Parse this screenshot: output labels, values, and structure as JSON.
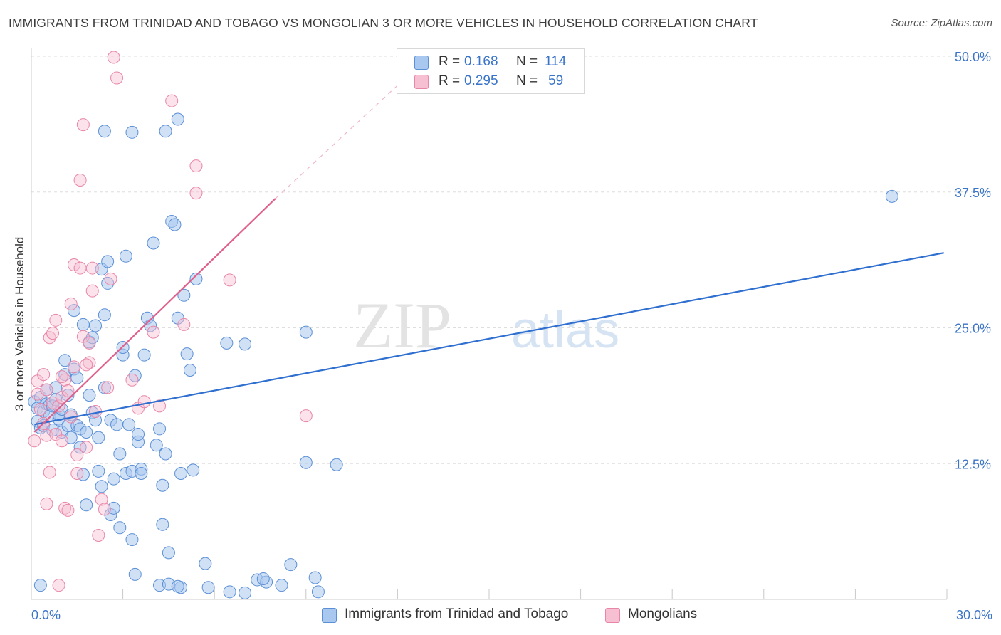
{
  "title": "IMMIGRANTS FROM TRINIDAD AND TOBAGO VS MONGOLIAN 3 OR MORE VEHICLES IN HOUSEHOLD CORRELATION CHART",
  "source": "Source: ZipAtlas.com",
  "watermark": {
    "zip": "ZIP",
    "atlas": "atlas"
  },
  "legend": {
    "r_label": "R =",
    "n_label": "N =",
    "entries": [
      {
        "r": "0.168",
        "n": "114"
      },
      {
        "r": "0.295",
        "n": "59"
      }
    ]
  },
  "bottom_legend": [
    "Immigrants from Trinidad and Tobago",
    "Mongolians"
  ],
  "colors": {
    "blue_fill": "#a9c8ef",
    "blue_stroke": "#5b8fd6",
    "blue_line": "#2f6fd0",
    "pink_fill": "#f6bfd2",
    "pink_stroke": "#e886a8",
    "pink_line": "#e0608c",
    "tick_label": "#3a74c8",
    "grid": "#dedede"
  },
  "chart_data": {
    "type": "scatter",
    "title": "IMMIGRANTS FROM TRINIDAD AND TOBAGO VS MONGOLIAN 3 OR MORE VEHICLES IN HOUSEHOLD CORRELATION CHART",
    "xlabel": "",
    "ylabel": "3 or more Vehicles in Household",
    "xlim": [
      0,
      30
    ],
    "ylim": [
      0,
      50
    ],
    "x_tick_labels": [
      "0.0%",
      "30.0%"
    ],
    "y_ticks": [
      12.5,
      25.0,
      37.5,
      50.0
    ],
    "y_tick_labels": [
      "12.5%",
      "25.0%",
      "37.5%",
      "50.0%"
    ],
    "grid": true,
    "series": [
      {
        "name": "Immigrants from Trinidad and Tobago",
        "r": 0.168,
        "n": 114,
        "trend": {
          "x": [
            0.1,
            29.9
          ],
          "y": [
            16.1,
            31.9
          ]
        },
        "points": [
          [
            0.1,
            18.2
          ],
          [
            0.2,
            17.6
          ],
          [
            0.2,
            16.4
          ],
          [
            0.3,
            15.8
          ],
          [
            0.3,
            18.6
          ],
          [
            0.4,
            17.3
          ],
          [
            0.4,
            16.0
          ],
          [
            0.5,
            18.0
          ],
          [
            0.5,
            19.3
          ],
          [
            0.6,
            17.9
          ],
          [
            0.6,
            16.9
          ],
          [
            0.7,
            15.6
          ],
          [
            0.7,
            17.8
          ],
          [
            0.8,
            19.5
          ],
          [
            0.8,
            18.4
          ],
          [
            0.9,
            16.6
          ],
          [
            0.9,
            17.0
          ],
          [
            1.0,
            17.5
          ],
          [
            1.0,
            15.4
          ],
          [
            1.1,
            22.0
          ],
          [
            1.1,
            20.7
          ],
          [
            1.2,
            18.8
          ],
          [
            1.2,
            16.0
          ],
          [
            1.3,
            14.9
          ],
          [
            1.3,
            17.0
          ],
          [
            1.4,
            26.6
          ],
          [
            1.4,
            21.2
          ],
          [
            1.5,
            20.4
          ],
          [
            1.5,
            16.0
          ],
          [
            1.6,
            15.7
          ],
          [
            1.6,
            14.0
          ],
          [
            1.7,
            25.3
          ],
          [
            1.7,
            11.5
          ],
          [
            1.8,
            15.4
          ],
          [
            1.8,
            8.7
          ],
          [
            1.9,
            23.7
          ],
          [
            1.9,
            18.8
          ],
          [
            2.0,
            24.1
          ],
          [
            2.0,
            17.2
          ],
          [
            2.1,
            25.2
          ],
          [
            2.1,
            16.5
          ],
          [
            2.2,
            11.8
          ],
          [
            2.2,
            14.9
          ],
          [
            2.3,
            10.4
          ],
          [
            2.3,
            30.4
          ],
          [
            2.4,
            19.5
          ],
          [
            2.4,
            26.2
          ],
          [
            2.5,
            29.1
          ],
          [
            2.5,
            31.1
          ],
          [
            2.6,
            16.5
          ],
          [
            2.6,
            7.8
          ],
          [
            2.7,
            11.1
          ],
          [
            2.7,
            8.4
          ],
          [
            2.8,
            16.1
          ],
          [
            2.9,
            13.4
          ],
          [
            2.9,
            6.6
          ],
          [
            3.0,
            22.5
          ],
          [
            3.0,
            23.2
          ],
          [
            3.1,
            31.6
          ],
          [
            3.1,
            11.6
          ],
          [
            3.2,
            16.1
          ],
          [
            3.3,
            11.8
          ],
          [
            3.3,
            5.5
          ],
          [
            3.4,
            20.6
          ],
          [
            3.4,
            2.3
          ],
          [
            3.5,
            14.5
          ],
          [
            3.5,
            15.2
          ],
          [
            3.6,
            12.0
          ],
          [
            3.6,
            11.6
          ],
          [
            3.7,
            22.5
          ],
          [
            3.8,
            25.9
          ],
          [
            3.9,
            25.2
          ],
          [
            4.0,
            32.8
          ],
          [
            4.1,
            14.2
          ],
          [
            4.2,
            15.7
          ],
          [
            4.3,
            6.9
          ],
          [
            4.3,
            10.5
          ],
          [
            4.4,
            13.4
          ],
          [
            4.5,
            4.3
          ],
          [
            4.6,
            34.8
          ],
          [
            4.7,
            34.5
          ],
          [
            4.8,
            25.9
          ],
          [
            4.9,
            11.6
          ],
          [
            5.0,
            28.0
          ],
          [
            5.1,
            22.6
          ],
          [
            5.2,
            21.1
          ],
          [
            5.3,
            11.9
          ],
          [
            5.4,
            29.5
          ],
          [
            4.9,
            1.1
          ],
          [
            4.2,
            1.3
          ],
          [
            4.5,
            1.4
          ],
          [
            4.8,
            1.2
          ],
          [
            5.7,
            3.3
          ],
          [
            5.8,
            1.1
          ],
          [
            6.4,
            23.6
          ],
          [
            6.5,
            0.7
          ],
          [
            7.0,
            23.5
          ],
          [
            7.0,
            0.6
          ],
          [
            7.4,
            1.8
          ],
          [
            7.7,
            1.6
          ],
          [
            9.0,
            24.6
          ],
          [
            9.0,
            12.6
          ],
          [
            9.3,
            2.0
          ],
          [
            9.4,
            0.7
          ],
          [
            10.0,
            12.4
          ],
          [
            0.3,
            1.3
          ],
          [
            2.4,
            43.1
          ],
          [
            3.3,
            43.0
          ],
          [
            4.4,
            43.1
          ],
          [
            4.8,
            44.2
          ],
          [
            7.6,
            1.9
          ],
          [
            8.2,
            1.3
          ],
          [
            8.5,
            3.2
          ],
          [
            28.2,
            37.1
          ]
        ]
      },
      {
        "name": "Mongolians",
        "r": 0.295,
        "n": 59,
        "trend": {
          "x": [
            0.1,
            8.0
          ],
          "y": [
            15.4,
            36.9
          ]
        },
        "trend_dashed": {
          "x": [
            8.0,
            12.3
          ],
          "y": [
            36.9,
            48.1
          ]
        },
        "points": [
          [
            0.1,
            14.6
          ],
          [
            0.2,
            18.9
          ],
          [
            0.2,
            20.1
          ],
          [
            0.3,
            17.5
          ],
          [
            0.4,
            16.2
          ],
          [
            0.4,
            20.7
          ],
          [
            0.5,
            15.1
          ],
          [
            0.5,
            19.3
          ],
          [
            0.6,
            24.1
          ],
          [
            0.6,
            11.7
          ],
          [
            0.7,
            24.5
          ],
          [
            0.7,
            18.1
          ],
          [
            0.8,
            25.7
          ],
          [
            0.8,
            15.2
          ],
          [
            0.9,
            17.8
          ],
          [
            0.9,
            1.3
          ],
          [
            1.0,
            18.6
          ],
          [
            1.0,
            14.6
          ],
          [
            1.1,
            8.4
          ],
          [
            1.1,
            20.2
          ],
          [
            1.2,
            19.2
          ],
          [
            1.2,
            8.2
          ],
          [
            1.3,
            27.2
          ],
          [
            1.3,
            16.8
          ],
          [
            1.4,
            30.8
          ],
          [
            1.4,
            21.4
          ],
          [
            1.5,
            11.6
          ],
          [
            1.5,
            13.3
          ],
          [
            1.6,
            38.6
          ],
          [
            1.6,
            30.5
          ],
          [
            1.7,
            43.7
          ],
          [
            1.7,
            24.2
          ],
          [
            1.8,
            14.0
          ],
          [
            1.9,
            23.6
          ],
          [
            1.9,
            21.8
          ],
          [
            2.0,
            30.5
          ],
          [
            2.0,
            28.4
          ],
          [
            2.1,
            17.3
          ],
          [
            2.2,
            5.9
          ],
          [
            2.3,
            9.2
          ],
          [
            2.4,
            8.3
          ],
          [
            2.5,
            19.5
          ],
          [
            2.6,
            29.5
          ],
          [
            2.7,
            49.9
          ],
          [
            2.8,
            48.0
          ],
          [
            3.3,
            20.2
          ],
          [
            3.5,
            17.6
          ],
          [
            3.7,
            18.2
          ],
          [
            4.0,
            24.6
          ],
          [
            4.2,
            17.8
          ],
          [
            4.6,
            45.9
          ],
          [
            5.0,
            25.3
          ],
          [
            5.4,
            39.9
          ],
          [
            5.4,
            37.4
          ],
          [
            6.5,
            29.4
          ],
          [
            9.0,
            16.9
          ],
          [
            0.5,
            8.8
          ],
          [
            1.0,
            20.5
          ],
          [
            1.8,
            21.6
          ]
        ]
      }
    ]
  }
}
